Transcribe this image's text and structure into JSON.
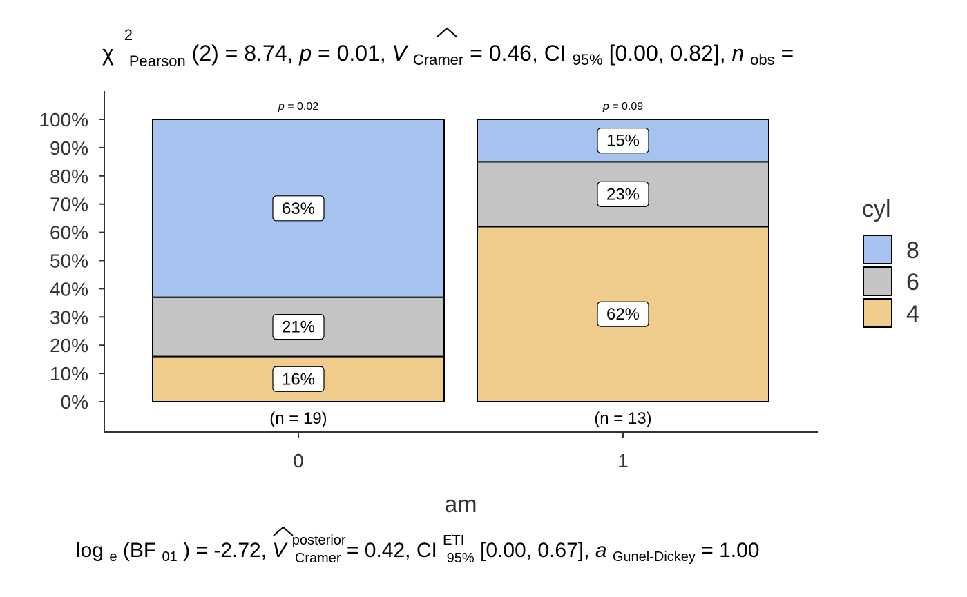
{
  "title": {
    "chi": "χ",
    "chi_sup": "2",
    "chi_sub": "Pearson",
    "df": "(2) = 8.74, ",
    "p_sym": "p",
    "p_val": " = 0.01, ",
    "v_sym": "V",
    "v_sub": "Cramer",
    "v_val": " = 0.46, CI",
    "ci_sub": "95%",
    "ci_val": " [0.00, 0.82], ",
    "n_sym": "n",
    "n_sub": "obs",
    "n_val": " ="
  },
  "subtitle": {
    "log": "log",
    "log_sub": "e",
    "bf_open": "(BF",
    "bf_sub": "01",
    "bf_close": ")",
    "bf_val": " = -2.72, ",
    "v_sym": "V",
    "v_sup": "posterior",
    "v_sub": "Cramer",
    "v_val": " = 0.42, CI",
    "ci_sup": "ETI",
    "ci_sub": "95%",
    "ci_val": " [0.00, 0.67], ",
    "a_sym": "a",
    "a_sub": "Gunel-Dickey",
    "a_val": " = 1.00"
  },
  "chart_data": {
    "type": "bar",
    "stacked": true,
    "percent": true,
    "xlabel": "am",
    "ylabel": "",
    "categories": [
      "0",
      "1"
    ],
    "ylim": [
      0,
      100
    ],
    "yticks": [
      "0%",
      "10%",
      "20%",
      "30%",
      "40%",
      "50%",
      "60%",
      "70%",
      "80%",
      "90%",
      "100%"
    ],
    "series": [
      {
        "name": "4",
        "color": "#F0CC8C",
        "values": [
          16,
          62
        ],
        "labels": [
          "16%",
          "62%"
        ]
      },
      {
        "name": "6",
        "color": "#C4C4C4",
        "values": [
          21,
          23
        ],
        "labels": [
          "21%",
          "23%"
        ]
      },
      {
        "name": "8",
        "color": "#A6C3F0",
        "values": [
          63,
          15
        ],
        "labels": [
          "63%",
          "15%"
        ]
      }
    ],
    "n_labels": [
      "(n = 19)",
      "(n = 13)"
    ],
    "p_values": [
      "0.02",
      "0.09"
    ],
    "p_symbol": "p",
    "legend": {
      "title": "cyl",
      "position": "right",
      "entries": [
        {
          "label": "8",
          "color": "#A6C3F0"
        },
        {
          "label": "6",
          "color": "#C4C4C4"
        },
        {
          "label": "4",
          "color": "#F0CC8C"
        }
      ]
    },
    "grid": false
  }
}
